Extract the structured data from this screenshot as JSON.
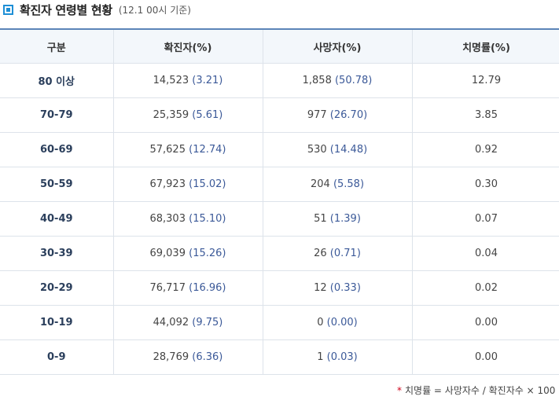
{
  "header": {
    "title": "확진자 연령별 현황",
    "subtitle": "(12.1 00시 기준)",
    "accent_color": "#1e8fd6"
  },
  "table": {
    "columns": [
      "구분",
      "확진자(%)",
      "사망자(%)",
      "치명률(%)"
    ],
    "rows": [
      {
        "age": "80 이상",
        "confirmed": "14,523",
        "confirmed_pct": "(3.21)",
        "deaths": "1,858",
        "deaths_pct": "(50.78)",
        "fatality": "12.79"
      },
      {
        "age": "70-79",
        "confirmed": "25,359",
        "confirmed_pct": "(5.61)",
        "deaths": "977",
        "deaths_pct": "(26.70)",
        "fatality": "3.85"
      },
      {
        "age": "60-69",
        "confirmed": "57,625",
        "confirmed_pct": "(12.74)",
        "deaths": "530",
        "deaths_pct": "(14.48)",
        "fatality": "0.92"
      },
      {
        "age": "50-59",
        "confirmed": "67,923",
        "confirmed_pct": "(15.02)",
        "deaths": "204",
        "deaths_pct": "(5.58)",
        "fatality": "0.30"
      },
      {
        "age": "40-49",
        "confirmed": "68,303",
        "confirmed_pct": "(15.10)",
        "deaths": "51",
        "deaths_pct": "(1.39)",
        "fatality": "0.07"
      },
      {
        "age": "30-39",
        "confirmed": "69,039",
        "confirmed_pct": "(15.26)",
        "deaths": "26",
        "deaths_pct": "(0.71)",
        "fatality": "0.04"
      },
      {
        "age": "20-29",
        "confirmed": "76,717",
        "confirmed_pct": "(16.96)",
        "deaths": "12",
        "deaths_pct": "(0.33)",
        "fatality": "0.02"
      },
      {
        "age": "10-19",
        "confirmed": "44,092",
        "confirmed_pct": "(9.75)",
        "deaths": "0",
        "deaths_pct": "(0.00)",
        "fatality": "0.00"
      },
      {
        "age": "0-9",
        "confirmed": "28,769",
        "confirmed_pct": "(6.36)",
        "deaths": "1",
        "deaths_pct": "(0.03)",
        "fatality": "0.00"
      }
    ]
  },
  "footnote": {
    "marker": "*",
    "text": "치명률 = 사망자수 / 확진자수 × 100"
  }
}
